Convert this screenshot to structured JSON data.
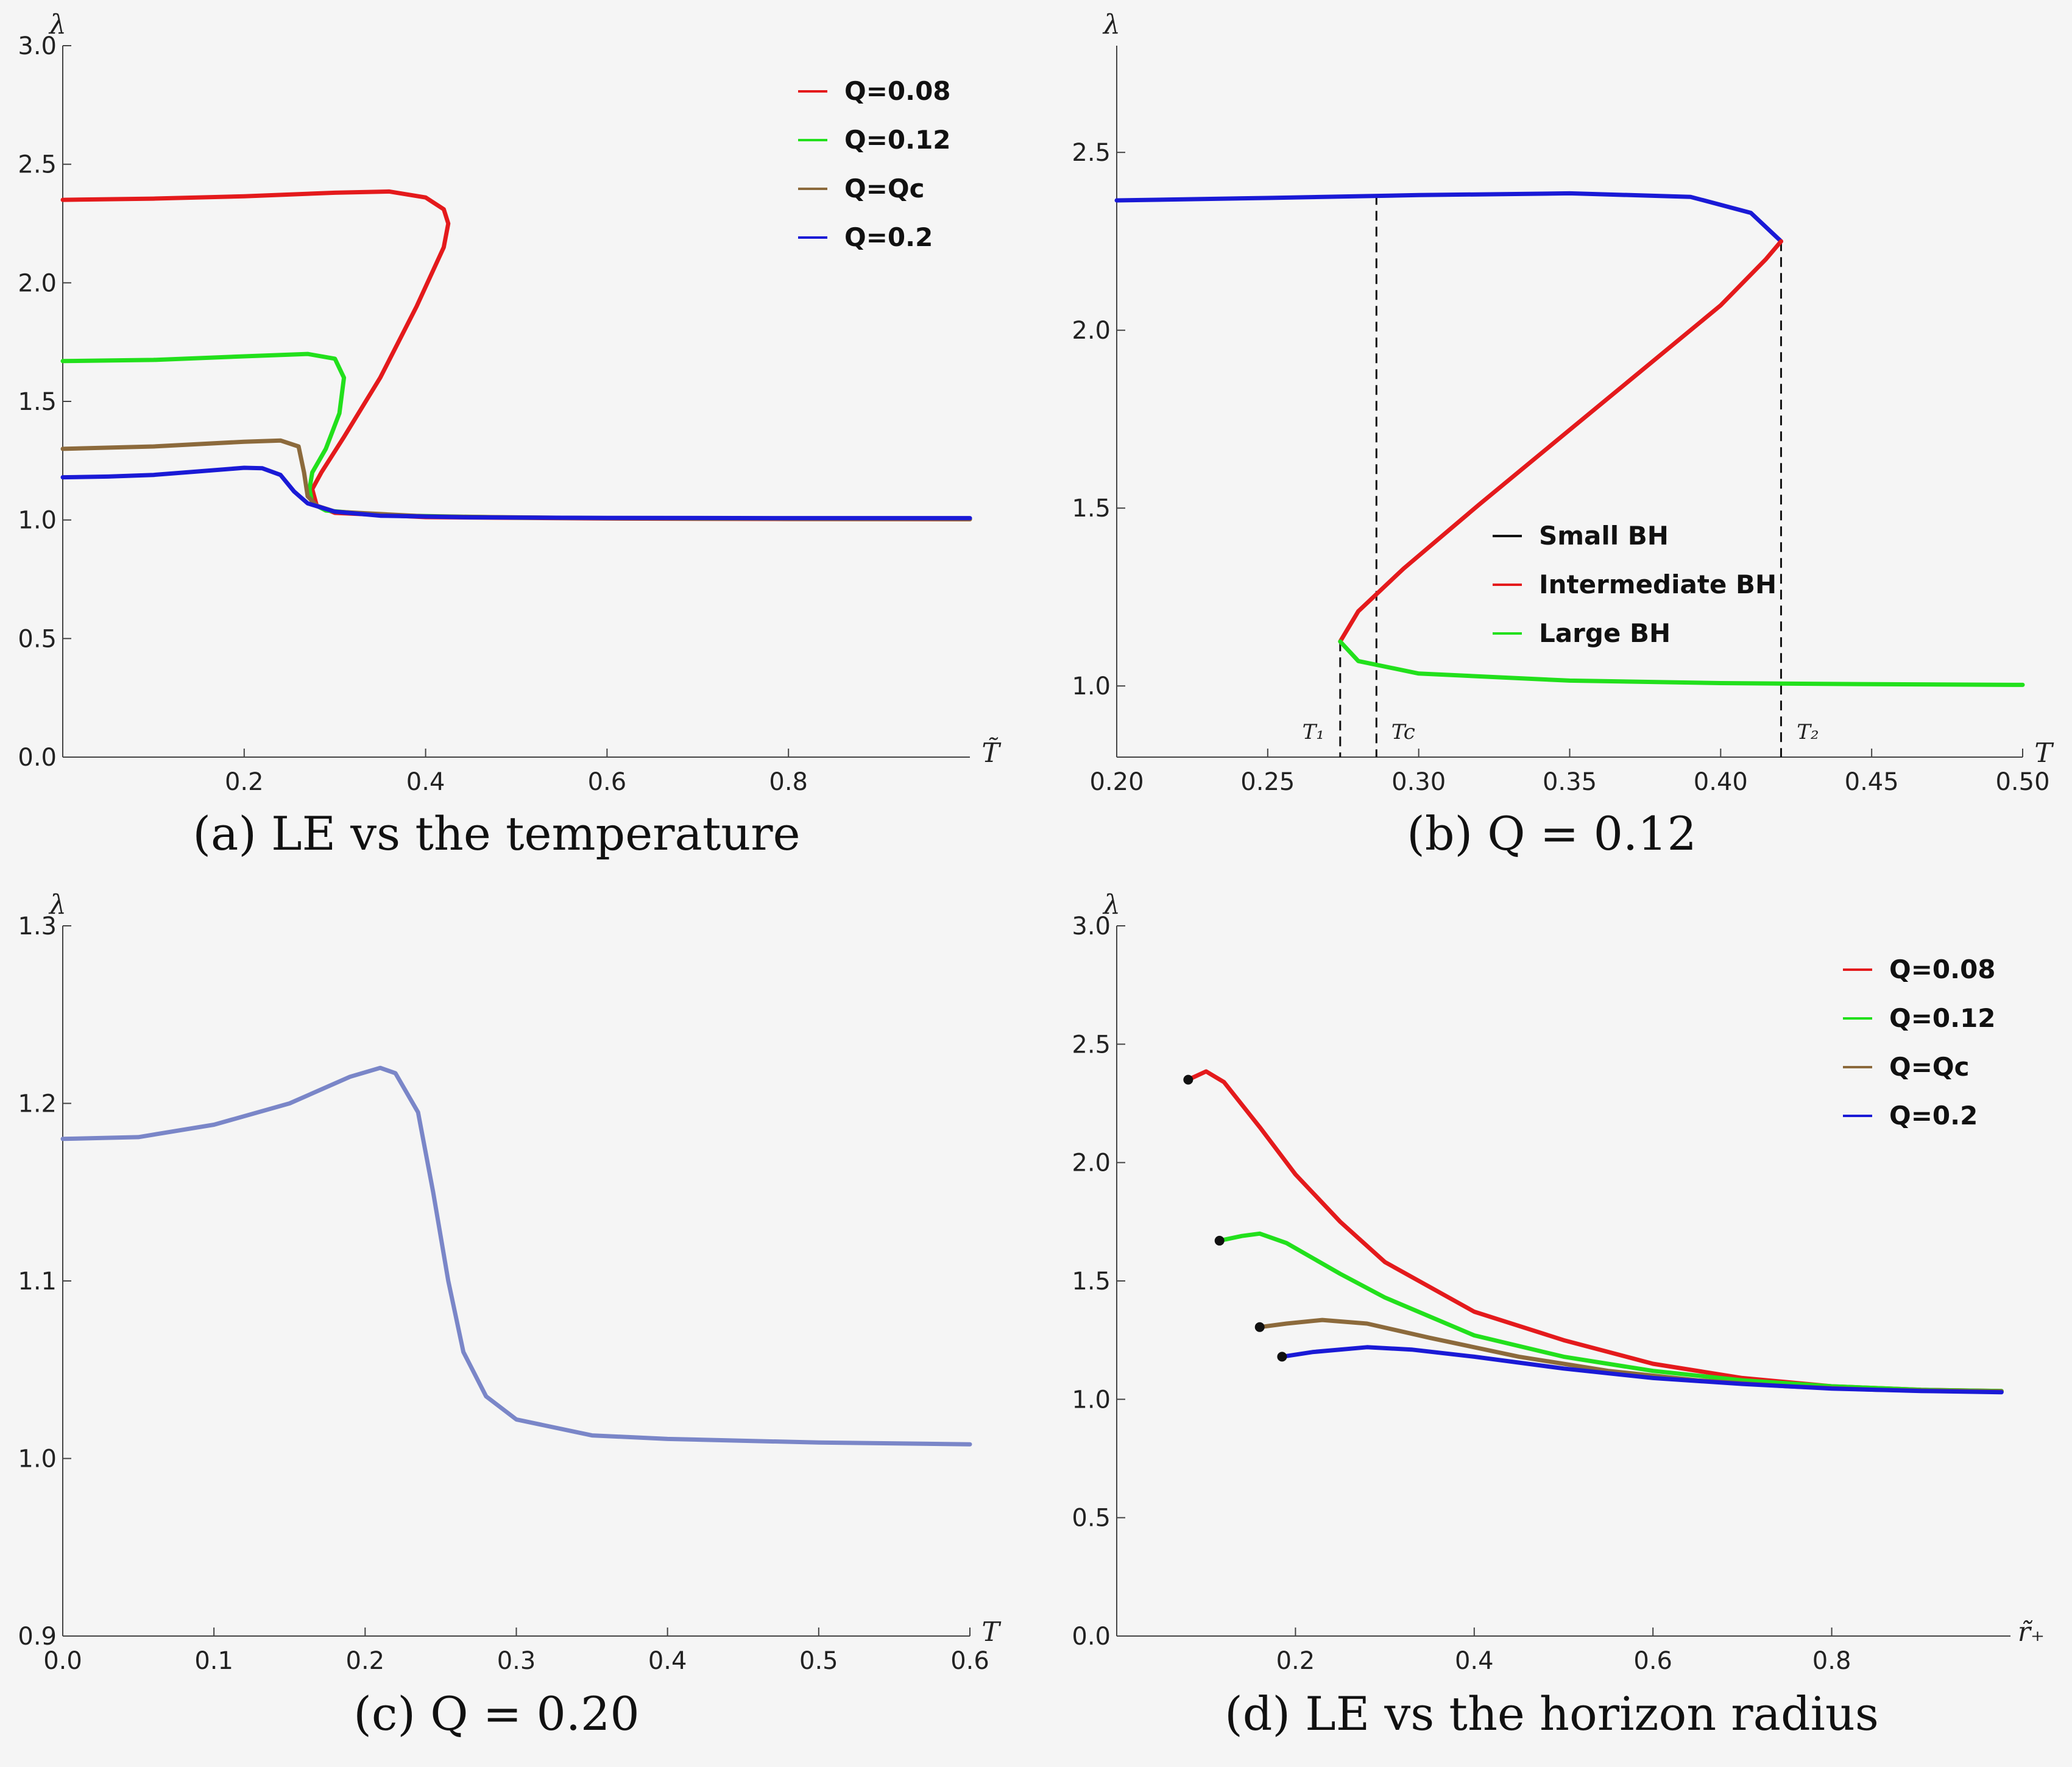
{
  "chart_data": [
    {
      "type": "line",
      "caption": "(a) LE vs the temperature",
      "xlabel": "T̃",
      "ylabel": "λ",
      "xlim": [
        0,
        1
      ],
      "ylim": [
        0,
        3
      ],
      "xticks": [
        "0.2",
        "0.4",
        "0.6",
        "0.8"
      ],
      "yticks": [
        "0.0",
        "0.5",
        "1.0",
        "1.5",
        "2.0",
        "2.5",
        "3.0"
      ],
      "legend_position": "top-right",
      "series": [
        {
          "name": "Q=0.08",
          "color": "#e41a1c",
          "points": [
            [
              0,
              2.35
            ],
            [
              0.1,
              2.355
            ],
            [
              0.2,
              2.365
            ],
            [
              0.3,
              2.38
            ],
            [
              0.36,
              2.385
            ],
            [
              0.4,
              2.36
            ],
            [
              0.42,
              2.31
            ],
            [
              0.425,
              2.25
            ],
            [
              0.42,
              2.15
            ],
            [
              0.39,
              1.9
            ],
            [
              0.35,
              1.6
            ],
            [
              0.31,
              1.35
            ],
            [
              0.285,
              1.2
            ],
            [
              0.275,
              1.13
            ],
            [
              0.28,
              1.06
            ],
            [
              0.3,
              1.03
            ],
            [
              0.4,
              1.012
            ],
            [
              0.6,
              1.006
            ],
            [
              0.8,
              1.004
            ],
            [
              1.0,
              1.003
            ]
          ]
        },
        {
          "name": "Q=0.12",
          "color": "#22e01c",
          "points": [
            [
              0,
              1.67
            ],
            [
              0.1,
              1.675
            ],
            [
              0.2,
              1.69
            ],
            [
              0.27,
              1.7
            ],
            [
              0.3,
              1.68
            ],
            [
              0.31,
              1.6
            ],
            [
              0.305,
              1.45
            ],
            [
              0.29,
              1.3
            ],
            [
              0.275,
              1.2
            ],
            [
              0.272,
              1.13
            ],
            [
              0.275,
              1.07
            ],
            [
              0.29,
              1.04
            ],
            [
              0.35,
              1.02
            ],
            [
              0.5,
              1.01
            ],
            [
              0.7,
              1.006
            ],
            [
              1.0,
              1.004
            ]
          ]
        },
        {
          "name": "Q=Qc",
          "color": "#8c6a3c",
          "points": [
            [
              0,
              1.3
            ],
            [
              0.1,
              1.31
            ],
            [
              0.2,
              1.33
            ],
            [
              0.24,
              1.335
            ],
            [
              0.26,
              1.31
            ],
            [
              0.266,
              1.2
            ],
            [
              0.27,
              1.1
            ],
            [
              0.28,
              1.06
            ],
            [
              0.3,
              1.035
            ],
            [
              0.4,
              1.015
            ],
            [
              0.6,
              1.007
            ],
            [
              0.8,
              1.005
            ],
            [
              1.0,
              1.004
            ]
          ]
        },
        {
          "name": "Q=0.2",
          "color": "#1a1ad6",
          "points": [
            [
              0,
              1.18
            ],
            [
              0.05,
              1.183
            ],
            [
              0.1,
              1.19
            ],
            [
              0.15,
              1.205
            ],
            [
              0.2,
              1.22
            ],
            [
              0.22,
              1.218
            ],
            [
              0.24,
              1.19
            ],
            [
              0.255,
              1.12
            ],
            [
              0.27,
              1.07
            ],
            [
              0.3,
              1.035
            ],
            [
              0.35,
              1.018
            ],
            [
              0.45,
              1.011
            ],
            [
              0.6,
              1.009
            ],
            [
              0.8,
              1.008
            ],
            [
              1.0,
              1.008
            ]
          ]
        }
      ]
    },
    {
      "type": "line",
      "caption": "(b) Q = 0.12",
      "xlabel": "T",
      "ylabel": "λ",
      "xlim": [
        0.2,
        0.5
      ],
      "ylim": [
        0.8,
        2.8
      ],
      "xticks": [
        "0.20",
        "0.25",
        "0.30",
        "0.35",
        "0.40",
        "0.45",
        "0.50"
      ],
      "yticks": [
        "1.0",
        "1.5",
        "2.0",
        "2.5"
      ],
      "legend_position": "center-right",
      "vlines": [
        {
          "x": 0.274,
          "label": "T₁"
        },
        {
          "x": 0.286,
          "label": "Tc"
        },
        {
          "x": 0.42,
          "label": "T₂"
        }
      ],
      "series": [
        {
          "name": "Small BH",
          "color": "#1a1ad6",
          "points": [
            [
              0.2,
              2.365
            ],
            [
              0.25,
              2.372
            ],
            [
              0.3,
              2.38
            ],
            [
              0.35,
              2.385
            ],
            [
              0.39,
              2.375
            ],
            [
              0.41,
              2.33
            ],
            [
              0.42,
              2.25
            ]
          ]
        },
        {
          "name": "Intermediate BH",
          "color": "#e41a1c",
          "points": [
            [
              0.42,
              2.25
            ],
            [
              0.415,
              2.2
            ],
            [
              0.4,
              2.07
            ],
            [
              0.38,
              1.93
            ],
            [
              0.35,
              1.72
            ],
            [
              0.32,
              1.51
            ],
            [
              0.295,
              1.33
            ],
            [
              0.28,
              1.21
            ],
            [
              0.274,
              1.125
            ]
          ]
        },
        {
          "name": "Large BH",
          "color": "#22e01c",
          "points": [
            [
              0.274,
              1.125
            ],
            [
              0.28,
              1.07
            ],
            [
              0.3,
              1.035
            ],
            [
              0.35,
              1.015
            ],
            [
              0.4,
              1.008
            ],
            [
              0.45,
              1.005
            ],
            [
              0.5,
              1.003
            ]
          ]
        }
      ]
    },
    {
      "type": "line",
      "caption": "(c) Q = 0.20",
      "xlabel": "T",
      "ylabel": "λ",
      "xlim": [
        0,
        0.6
      ],
      "ylim": [
        0.9,
        1.3
      ],
      "xticks": [
        "0.0",
        "0.1",
        "0.2",
        "0.3",
        "0.4",
        "0.5",
        "0.6"
      ],
      "yticks": [
        "0.9",
        "1.0",
        "1.1",
        "1.2",
        "1.3"
      ],
      "series": [
        {
          "color": "#7a86c8",
          "points": [
            [
              0,
              1.18
            ],
            [
              0.05,
              1.181
            ],
            [
              0.1,
              1.188
            ],
            [
              0.15,
              1.2
            ],
            [
              0.19,
              1.215
            ],
            [
              0.21,
              1.22
            ],
            [
              0.22,
              1.217
            ],
            [
              0.235,
              1.195
            ],
            [
              0.245,
              1.15
            ],
            [
              0.255,
              1.1
            ],
            [
              0.265,
              1.06
            ],
            [
              0.28,
              1.035
            ],
            [
              0.3,
              1.022
            ],
            [
              0.35,
              1.013
            ],
            [
              0.4,
              1.011
            ],
            [
              0.5,
              1.009
            ],
            [
              0.6,
              1.008
            ]
          ]
        }
      ]
    },
    {
      "type": "line",
      "caption": "(d) LE vs the horizon radius",
      "xlabel": "r̃₊",
      "ylabel": "λ",
      "xlim": [
        0,
        1
      ],
      "ylim": [
        0,
        3
      ],
      "xticks": [
        "0.2",
        "0.4",
        "0.6",
        "0.8"
      ],
      "yticks": [
        "0.0",
        "0.5",
        "1.0",
        "1.5",
        "2.0",
        "2.5",
        "3.0"
      ],
      "legend_position": "top-right",
      "series": [
        {
          "name": "Q=0.08",
          "color": "#e41a1c",
          "points": [
            [
              0.08,
              2.35
            ],
            [
              0.1,
              2.385
            ],
            [
              0.12,
              2.34
            ],
            [
              0.16,
              2.15
            ],
            [
              0.2,
              1.95
            ],
            [
              0.25,
              1.75
            ],
            [
              0.3,
              1.58
            ],
            [
              0.4,
              1.37
            ],
            [
              0.5,
              1.25
            ],
            [
              0.6,
              1.15
            ],
            [
              0.7,
              1.09
            ],
            [
              0.8,
              1.055
            ],
            [
              0.9,
              1.04
            ],
            [
              0.99,
              1.035
            ]
          ]
        },
        {
          "name": "Q=0.12",
          "color": "#22e01c",
          "points": [
            [
              0.115,
              1.67
            ],
            [
              0.14,
              1.69
            ],
            [
              0.16,
              1.7
            ],
            [
              0.19,
              1.66
            ],
            [
              0.25,
              1.53
            ],
            [
              0.3,
              1.43
            ],
            [
              0.4,
              1.27
            ],
            [
              0.5,
              1.18
            ],
            [
              0.6,
              1.12
            ],
            [
              0.7,
              1.08
            ],
            [
              0.8,
              1.055
            ],
            [
              0.9,
              1.04
            ],
            [
              0.99,
              1.035
            ]
          ]
        },
        {
          "name": "Q=Qc",
          "color": "#8c6a3c",
          "points": [
            [
              0.16,
              1.305
            ],
            [
              0.19,
              1.32
            ],
            [
              0.23,
              1.335
            ],
            [
              0.28,
              1.32
            ],
            [
              0.35,
              1.26
            ],
            [
              0.45,
              1.18
            ],
            [
              0.55,
              1.12
            ],
            [
              0.65,
              1.08
            ],
            [
              0.75,
              1.055
            ],
            [
              0.85,
              1.04
            ],
            [
              0.99,
              1.033
            ]
          ]
        },
        {
          "name": "Q=0.2",
          "color": "#1a1ad6",
          "points": [
            [
              0.185,
              1.18
            ],
            [
              0.22,
              1.2
            ],
            [
              0.28,
              1.22
            ],
            [
              0.33,
              1.21
            ],
            [
              0.4,
              1.18
            ],
            [
              0.5,
              1.13
            ],
            [
              0.6,
              1.09
            ],
            [
              0.7,
              1.065
            ],
            [
              0.8,
              1.045
            ],
            [
              0.9,
              1.035
            ],
            [
              0.99,
              1.03
            ]
          ]
        }
      ]
    }
  ]
}
